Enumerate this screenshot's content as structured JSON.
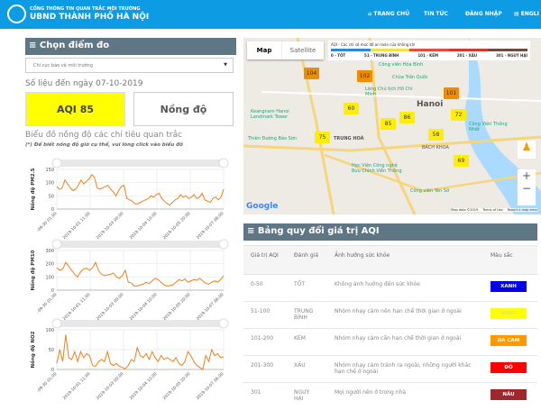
{
  "header": {
    "subtitle": "CỔNG THÔNG TIN QUAN TRẮC MÔI TRƯỜNG",
    "title": "UBND THÀNH PHỐ HÀ NỘI",
    "nav": [
      "TRANG CHỦ",
      "TIN TỨC",
      "ĐĂNG NHẬP",
      "ENGLI"
    ]
  },
  "left": {
    "panel_title": "≡ Chọn điểm đo",
    "station": "Chi cục bảo vệ môi trường",
    "date_text": "Số liệu đến ngày 07-10-2019",
    "aqi_button": "AQI 85",
    "aqi_color": "#ffff00",
    "conc_button": "Nồng độ",
    "charts_title": "Biểu đồ nồng độ các chỉ tiêu quan trắc",
    "note": "(*) Để biết nồng độ giờ cụ thể, vui lòng click vào biểu đồ"
  },
  "chart_data": [
    {
      "type": "line",
      "ylabel": "Nồng độ PM2.5",
      "ylim": [
        0,
        150
      ],
      "yticks": [
        "0",
        "50",
        "100",
        "150"
      ],
      "xticks": [
        "-09-30 01:00",
        "2019-10-01 11:00",
        "2019-10-03 00:00",
        "2019-10-04 10:00",
        "2019-10-05 20:00",
        "2019-10-07 06:00"
      ],
      "color": "#f07f1e",
      "values": [
        85,
        75,
        80,
        110,
        95,
        80,
        70,
        75,
        90,
        110,
        95,
        105,
        115,
        130,
        120,
        80,
        75,
        80,
        85,
        90,
        75,
        65,
        50,
        70,
        85,
        90,
        40,
        35,
        30,
        20,
        20,
        25,
        30,
        35,
        40,
        50,
        45,
        55,
        60,
        40,
        30,
        20,
        15,
        25,
        35,
        40,
        55,
        45,
        50,
        40,
        45,
        55,
        40,
        45,
        60,
        35,
        30,
        25,
        40,
        45,
        35,
        45,
        75
      ]
    },
    {
      "type": "line",
      "ylabel": "Nồng độ PM10",
      "ylim": [
        0,
        300
      ],
      "yticks": [
        "0",
        "100",
        "200",
        "300"
      ],
      "xticks": [
        "-09-30 01:00",
        "2019-10-01 11:00",
        "2019-10-03 00:00",
        "2019-10-04 10:00",
        "2019-10-05 20:00",
        "2019-10-07 06:00"
      ],
      "color": "#f07f1e",
      "values": [
        170,
        150,
        160,
        210,
        180,
        150,
        120,
        100,
        140,
        160,
        165,
        150,
        170,
        210,
        150,
        120,
        110,
        115,
        120,
        130,
        100,
        90,
        110,
        150,
        60,
        55,
        30,
        30,
        40,
        45,
        60,
        50,
        70,
        90,
        80,
        60,
        40,
        30,
        35,
        40,
        60,
        80,
        70,
        85,
        60,
        70,
        80,
        75,
        90,
        70,
        50,
        45,
        60,
        70,
        60,
        80,
        110
      ]
    },
    {
      "type": "line",
      "ylabel": "Nồng độ NO2",
      "ylim": [
        0,
        100
      ],
      "yticks": [
        "0",
        "50",
        "100"
      ],
      "xticks": [
        "-09-30 01:00",
        "2019-10-01 11:00",
        "2019-10-03 00:00",
        "2019-10-04 10:00",
        "2019-10-05 20:00",
        "2019-10-07 06:00"
      ],
      "color": "#f07f1e",
      "values": [
        15,
        50,
        20,
        88,
        30,
        25,
        45,
        20,
        45,
        30,
        40,
        35,
        10,
        8,
        20,
        25,
        20,
        45,
        15,
        10,
        15,
        8,
        5,
        2,
        10,
        25,
        20,
        55,
        35,
        30,
        40,
        25,
        45,
        30,
        20,
        35,
        25,
        30,
        25,
        20,
        30,
        15,
        10,
        20,
        45,
        35,
        20,
        10,
        5,
        0,
        35,
        20,
        50,
        35,
        40,
        30,
        32
      ]
    }
  ],
  "map": {
    "tabs": [
      "Map",
      "Satellite"
    ],
    "legend_title": "AQI - Các chỉ số mức độ an toàn của không khí",
    "legend_labels": [
      "0 - TỐT",
      "51 - TRUNG BÌNH",
      "101 - KÉM",
      "201 - XẤU",
      "301 - NGUY HẠI"
    ],
    "legend_colors": [
      "#2e86de",
      "#f5e04a",
      "#e74c3c",
      "#d63a2a",
      "#6d4c41"
    ],
    "places": [
      "Công viên Hòa Bình",
      "Chùa Trấn Quốc",
      "Lăng Chủ tịch Hồ Chí Minh",
      "Hanoi",
      "Keangnam Hanoi Landmark Tower",
      "TRUNG HOÀ",
      "Công Viên Thống Nhất",
      "Thiên Đường Bảo Sơn",
      "Học Viện Công nghệ Bưu Chính Viễn Thông",
      "Công viên Yên Sở",
      "BÁCH KHOA"
    ],
    "markers": [
      {
        "value": "104",
        "color": "#f08c00"
      },
      {
        "value": "102",
        "color": "#f08c00"
      },
      {
        "value": "101",
        "color": "#f08c00"
      },
      {
        "value": "60",
        "color": "#ffee00"
      },
      {
        "value": "86",
        "color": "#ffee00"
      },
      {
        "value": "85",
        "color": "#ffee00"
      },
      {
        "value": "72",
        "color": "#ffee00"
      },
      {
        "value": "75",
        "color": "#ffee00"
      },
      {
        "value": "58",
        "color": "#ffee00"
      },
      {
        "value": "69",
        "color": "#ffee00"
      }
    ],
    "google": "Google",
    "footer": [
      "Map data ©2019",
      "Terms of Use",
      "Report a map error"
    ],
    "zoom_in": "+",
    "zoom_out": "−"
  },
  "aqi_table": {
    "title": "≡ Bảng quy đổi giá trị AQI",
    "headers": [
      "Giá trị AQI",
      "Đánh giá",
      "Ảnh hưởng sức khỏe",
      "Màu sắc"
    ],
    "rows": [
      {
        "range": "0-50",
        "level": "TỐT",
        "effect": "Không ảnh hưởng đến sức khỏe",
        "color": "XANH",
        "hex": "#0000ee",
        "text": "#fff"
      },
      {
        "range": "51-100",
        "level": "TRUNG BÌNH",
        "effect": "Nhóm nhạy cảm nên hạn chế thời gian ở ngoài",
        "color": "VÀNG",
        "hex": "#ffff00",
        "text": "#e8e060"
      },
      {
        "range": "101-200",
        "level": "KÉM",
        "effect": "Nhóm nhạy cảm cần hạn chế thời gian ở ngoài",
        "color": "DA CAM",
        "hex": "#ff9900",
        "text": "#fff"
      },
      {
        "range": "201-300",
        "level": "XẤU",
        "effect": "Nhóm nhạy cảm tránh ra ngoài, những người khác hạn chế ở ngoài",
        "color": "ĐỎ",
        "hex": "#ff0000",
        "text": "#fff"
      },
      {
        "range": "301",
        "level": "NGUY HẠI",
        "effect": "Mọi người nên ở trong nhà",
        "color": "NÂU",
        "hex": "#a0282a",
        "text": "#fff"
      }
    ]
  }
}
